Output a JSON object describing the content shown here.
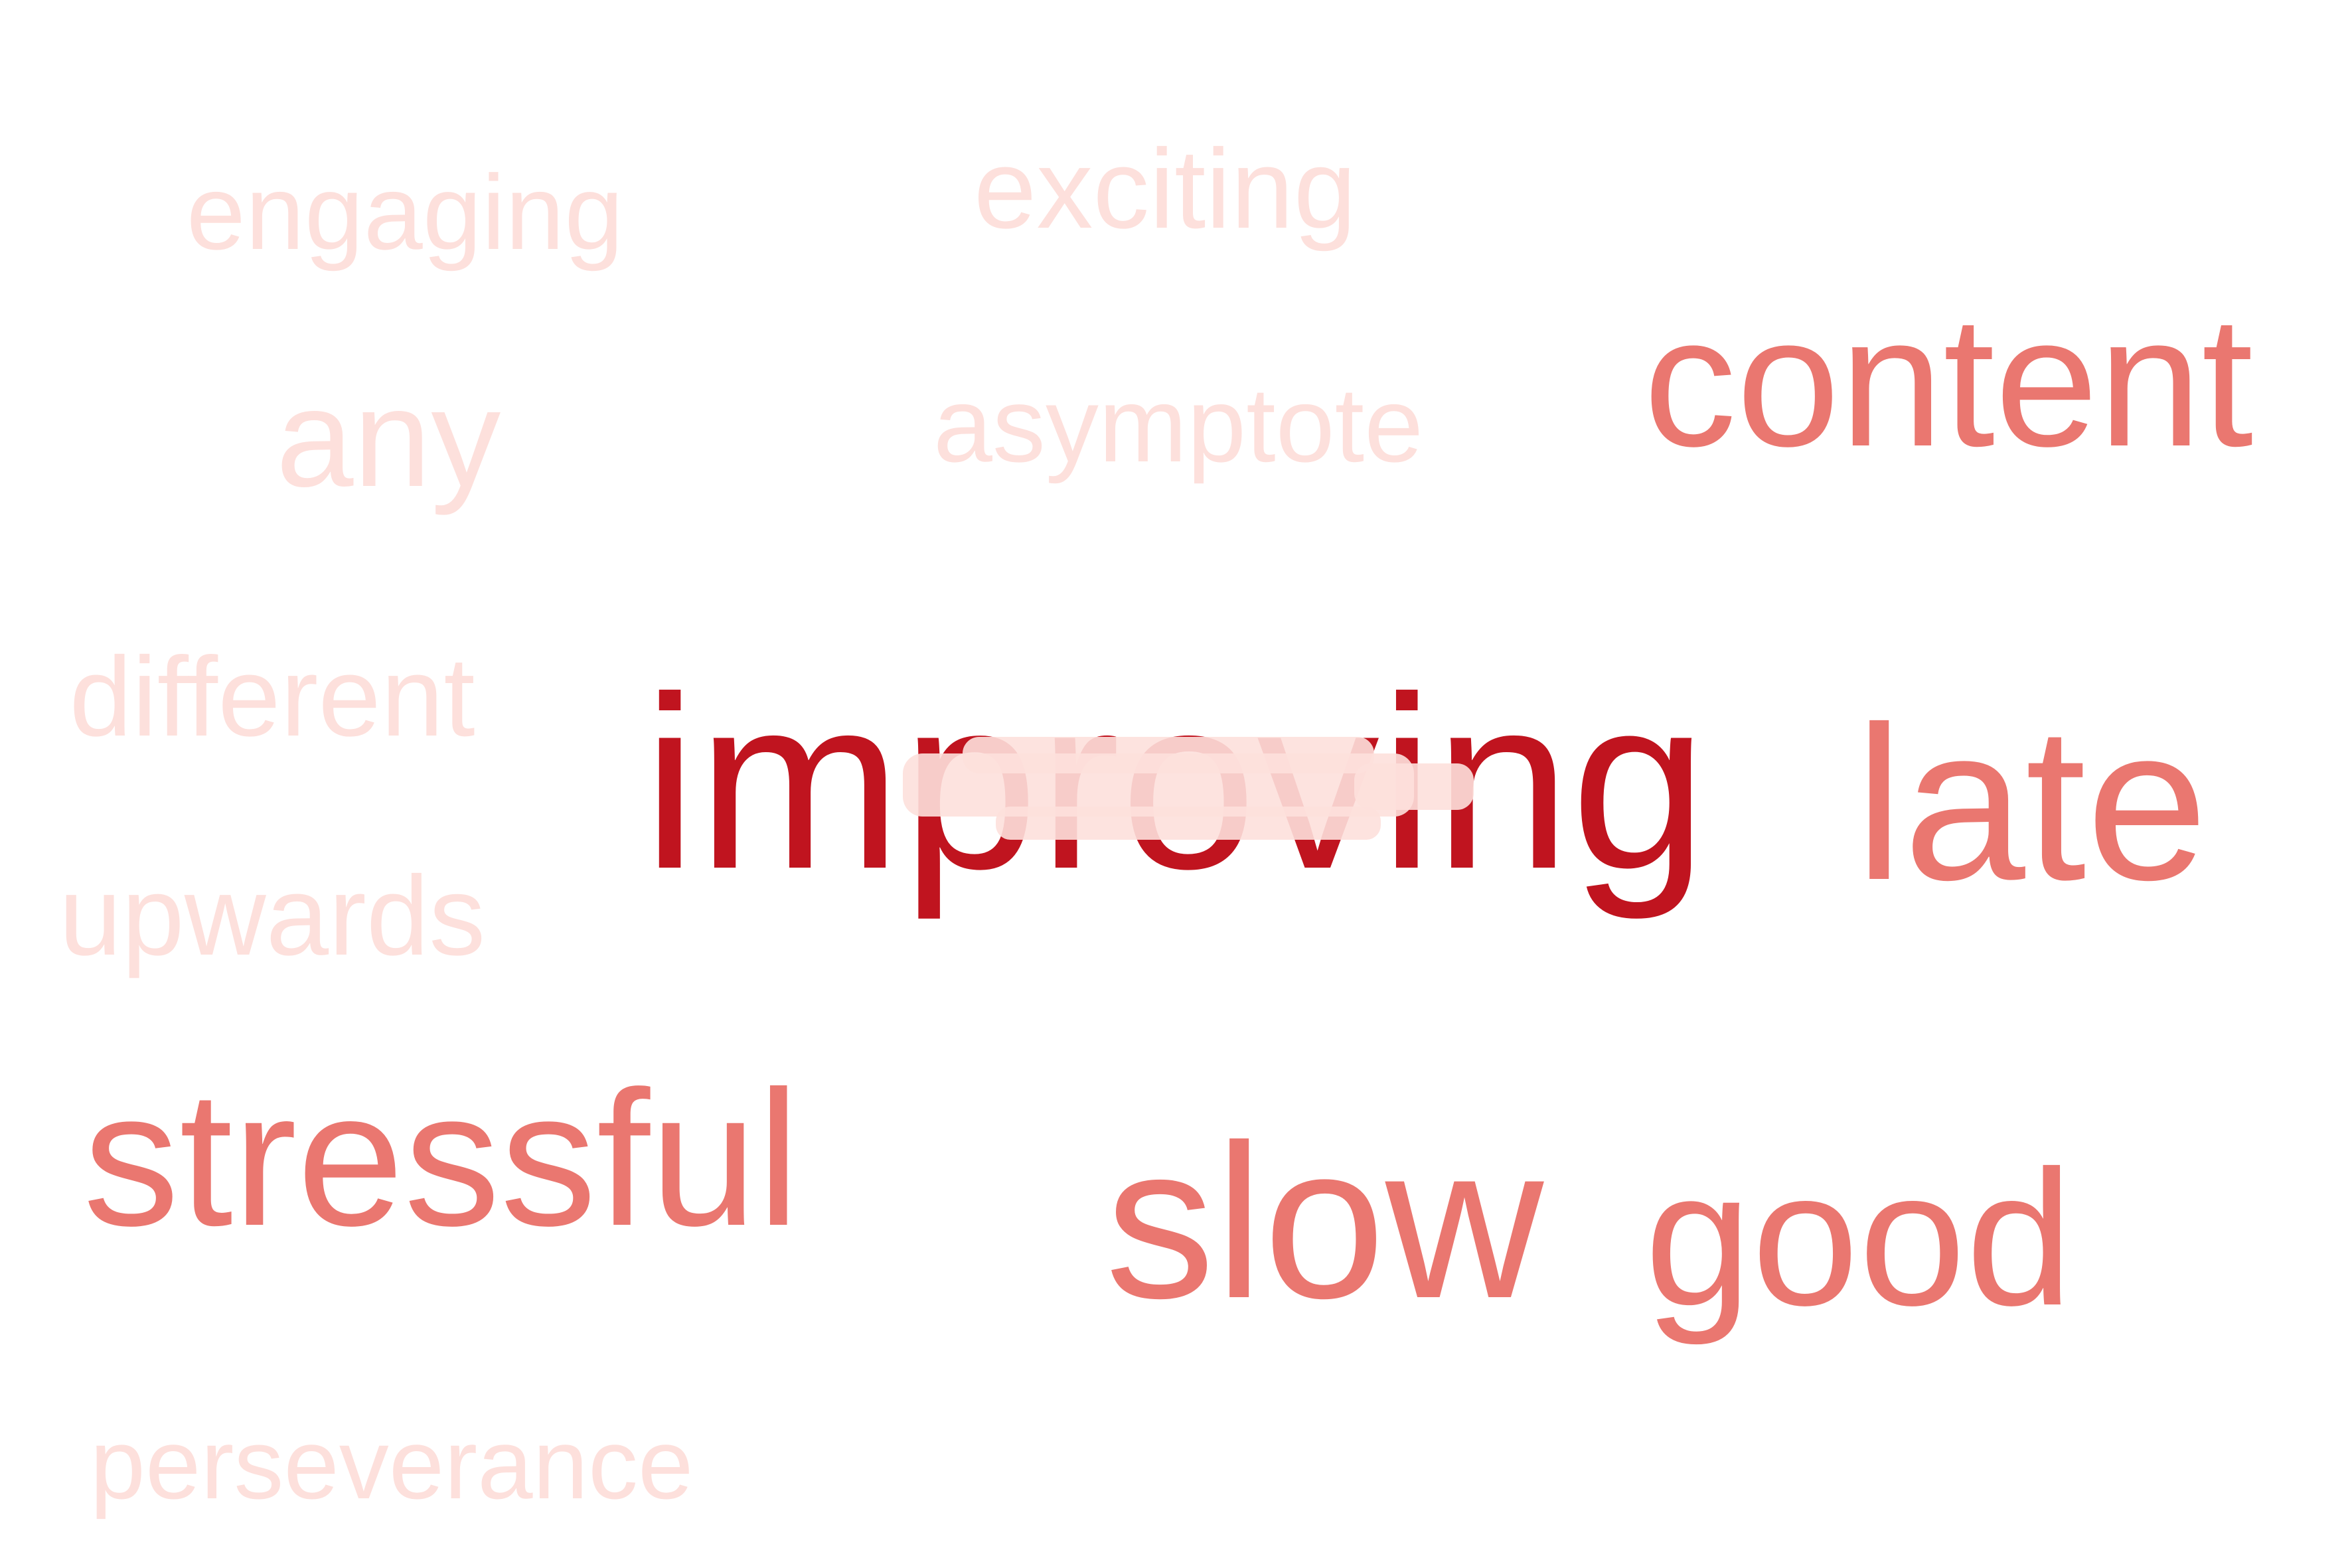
{
  "words": [
    {
      "text": "improving",
      "color": "#c0141f",
      "weight": 1.0
    },
    {
      "text": "late",
      "color": "#ea7770",
      "weight": 0.6
    },
    {
      "text": "content",
      "color": "#ea7770",
      "weight": 0.6
    },
    {
      "text": "slow",
      "color": "#ea7770",
      "weight": 0.6
    },
    {
      "text": "good",
      "color": "#ea7770",
      "weight": 0.6
    },
    {
      "text": "stressful",
      "color": "#ea7770",
      "weight": 0.6
    },
    {
      "text": "any",
      "color": "#fde0dc",
      "weight": 0.2
    },
    {
      "text": "engaging",
      "color": "#fde0dc",
      "weight": 0.2
    },
    {
      "text": "exciting",
      "color": "#fde0dc",
      "weight": 0.2
    },
    {
      "text": "asymptote",
      "color": "#fde0dc",
      "weight": 0.2
    },
    {
      "text": "different",
      "color": "#fde0dc",
      "weight": 0.2
    },
    {
      "text": "upwards",
      "color": "#fde0dc",
      "weight": 0.2
    },
    {
      "text": "perseverance",
      "color": "#fde0dc",
      "weight": 0.2
    }
  ],
  "overlap_words": [
    {
      "color": "#fde0dc"
    },
    {
      "color": "#fde0dc"
    },
    {
      "color": "#fde0dc"
    },
    {
      "color": "#fde0dc"
    }
  ]
}
